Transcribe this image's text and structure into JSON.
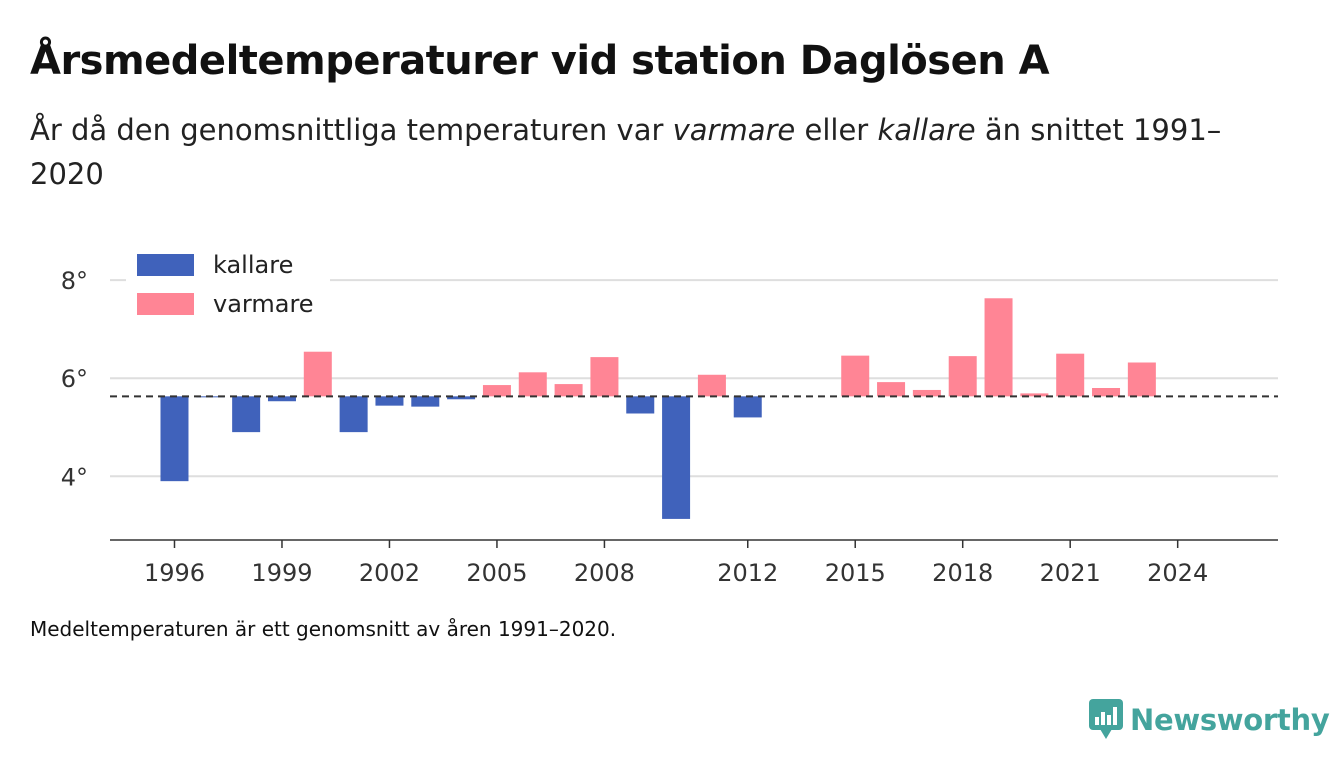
{
  "header": {
    "title": "Årsmedeltemperaturer vid station Daglösen A",
    "subtitle_prefix": "År då den genomsnittliga temperaturen var ",
    "subtitle_warm": "varmare",
    "subtitle_mid": " eller ",
    "subtitle_cold": "kallare",
    "subtitle_suffix": " än snittet 1991–2020"
  },
  "footnote": "Medeltemperaturen är ett genomsnitt av åren 1991–2020.",
  "brand": {
    "name": "Newsworthy",
    "icon": "newsworthy-logo-icon",
    "color": "#44a49d"
  },
  "chart_data": {
    "type": "bar",
    "baseline": 5.63,
    "ylim": [
      2.7,
      8.9
    ],
    "y_ticks": [
      4,
      6,
      8
    ],
    "y_tick_labels": [
      "4°",
      "6°",
      "8°"
    ],
    "x_ticks": [
      1996,
      1999,
      2002,
      2005,
      2008,
      2012,
      2015,
      2018,
      2021,
      2024
    ],
    "x_range": [
      1994.2,
      2026.8
    ],
    "grid": true,
    "legend_position": "top-left",
    "colors": {
      "kallare": "#4062bb",
      "varmare": "#ff8595"
    },
    "series": [
      {
        "name": "kallare",
        "color": "#4062bb"
      },
      {
        "name": "varmare",
        "color": "#ff8595"
      }
    ],
    "years": [
      1996,
      1997,
      1998,
      1999,
      2000,
      2001,
      2002,
      2003,
      2004,
      2005,
      2006,
      2007,
      2008,
      2009,
      2010,
      2011,
      2012,
      2013,
      2014,
      2015,
      2016,
      2017,
      2018,
      2019,
      2020,
      2021,
      2022,
      2023,
      2024
    ],
    "values": [
      3.9,
      5.61,
      4.9,
      5.53,
      6.54,
      4.9,
      5.44,
      5.42,
      5.57,
      5.86,
      6.12,
      5.88,
      6.43,
      5.28,
      3.13,
      6.07,
      5.2,
      null,
      null,
      6.46,
      5.92,
      5.76,
      6.45,
      7.63,
      5.69,
      6.5,
      5.8,
      6.32,
      null
    ]
  }
}
